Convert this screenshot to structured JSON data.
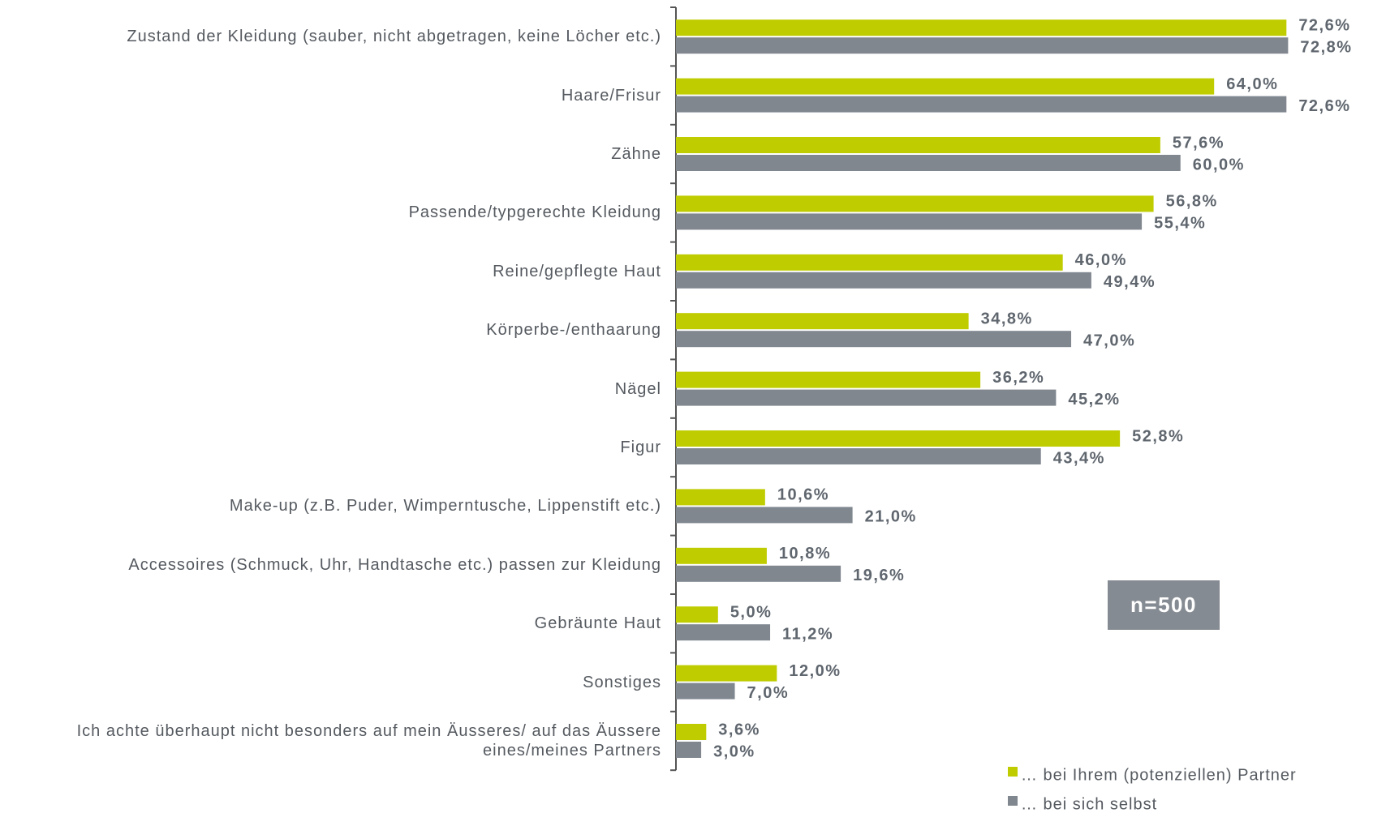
{
  "chart_data": {
    "type": "bar",
    "orientation": "horizontal",
    "categories": [
      "Zustand der Kleidung (sauber, nicht abgetragen, keine Löcher etc.)",
      "Haare/Frisur",
      "Zähne",
      "Passende/typgerechte Kleidung",
      "Reine/gepflegte Haut",
      "Körperbe-/enthaarung",
      "Nägel",
      "Figur",
      "Make-up (z.B. Puder, Wimperntusche, Lippenstift etc.)",
      "Accessoires (Schmuck, Uhr, Handtasche etc.) passen zur Kleidung",
      "Gebräunte Haut",
      "Sonstiges",
      "Ich achte überhaupt nicht besonders auf mein Äusseres/ auf das Äussere eines/meines Partners"
    ],
    "series": [
      {
        "name": "… bei  Ihrem (potenziellen) Partner",
        "color": "#bfcc00",
        "values": [
          72.6,
          64.0,
          57.6,
          56.8,
          46.0,
          34.8,
          36.2,
          52.8,
          10.6,
          10.8,
          5.0,
          12.0,
          3.6
        ],
        "value_labels": [
          "72,6%",
          "64,0%",
          "57,6%",
          "56,8%",
          "46,0%",
          "34,8%",
          "36,2%",
          "52,8%",
          "10,6%",
          "10,8%",
          "5,0%",
          "12,0%",
          "3,6%"
        ]
      },
      {
        "name": "… bei sich selbst",
        "color": "#80878f",
        "values": [
          72.8,
          72.6,
          60.0,
          55.4,
          49.4,
          47.0,
          45.2,
          43.4,
          21.0,
          19.6,
          11.2,
          7.0,
          3.0
        ],
        "value_labels": [
          "72,8%",
          "72,6%",
          "60,0%",
          "55,4%",
          "49,4%",
          "47,0%",
          "45,2%",
          "43,4%",
          "21,0%",
          "19,6%",
          "11,2%",
          "7,0%",
          "3,0%"
        ]
      }
    ],
    "xlim": [
      0,
      80
    ],
    "annotation": "n=500",
    "legend": "bottom-right"
  }
}
